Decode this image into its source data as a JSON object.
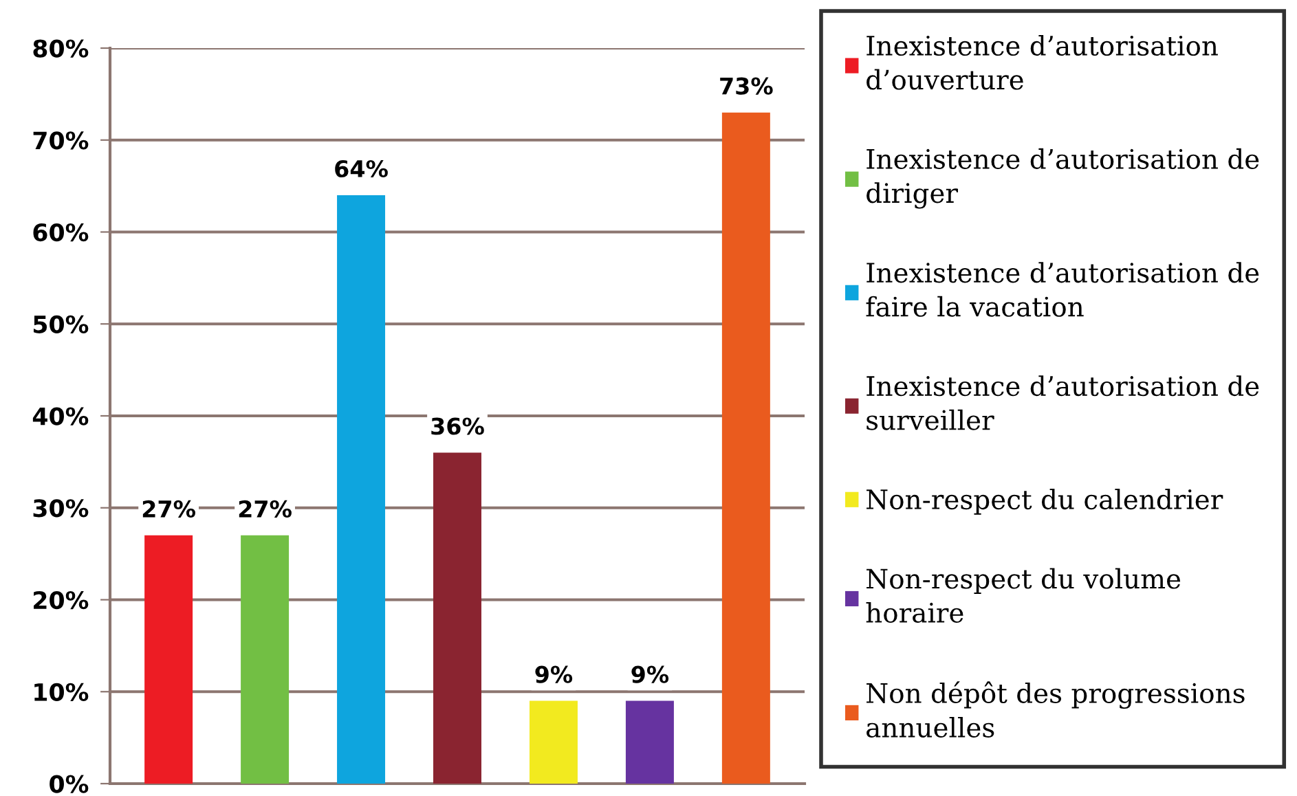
{
  "chart_data": {
    "type": "bar",
    "categories": [
      null
    ],
    "series": [
      {
        "name": "Inexistence d’autorisation d’ouverture",
        "color": "#ed1c24",
        "values": [
          27
        ],
        "value_labels": [
          "27%"
        ]
      },
      {
        "name": "Inexistence d’autorisation de diriger",
        "color": "#72bf44",
        "values": [
          27
        ],
        "value_labels": [
          "27%"
        ]
      },
      {
        "name": "Inexistence d’autorisation de faire la vacation",
        "color": "#0ea5de",
        "values": [
          64
        ],
        "value_labels": [
          "64%"
        ]
      },
      {
        "name": "Inexistence d’autorisation de surveiller",
        "color": "#8a2430",
        "values": [
          36
        ],
        "value_labels": [
          "36%"
        ]
      },
      {
        "name": "Non-respect du calendrier",
        "color": "#f2ea1f",
        "values": [
          9
        ],
        "value_labels": [
          "9%"
        ]
      },
      {
        "name": "Non-respect du volume horaire",
        "color": "#6633a0",
        "values": [
          9
        ],
        "value_labels": [
          "9%"
        ]
      },
      {
        "name": "Non dépôt des progressions annuelles",
        "color": "#ea5b1e",
        "values": [
          73
        ],
        "value_labels": [
          "73%"
        ]
      }
    ],
    "ylim": [
      0,
      80
    ],
    "yticks": [
      {
        "value": 0,
        "label": "0%"
      },
      {
        "value": 10,
        "label": "10%"
      },
      {
        "value": 20,
        "label": "20%"
      },
      {
        "value": 30,
        "label": "30%"
      },
      {
        "value": 40,
        "label": "40%"
      },
      {
        "value": 50,
        "label": "50%"
      },
      {
        "value": 60,
        "label": "60%"
      },
      {
        "value": 70,
        "label": "70%"
      },
      {
        "value": 80,
        "label": "80%"
      }
    ],
    "grid": "y",
    "legend": "right",
    "tick_labels": "y"
  }
}
